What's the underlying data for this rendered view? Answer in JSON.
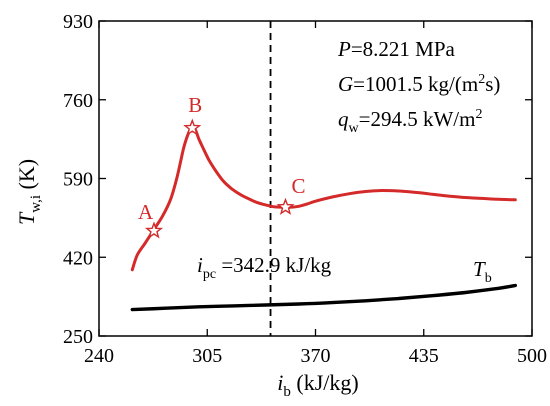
{
  "chart_data": {
    "type": "line",
    "xlim": [
      240,
      500
    ],
    "ylim": [
      250,
      930
    ],
    "xticks": [
      240,
      305,
      370,
      435,
      500
    ],
    "yticks": [
      250,
      420,
      590,
      760,
      930
    ],
    "xlabel": {
      "main": "i",
      "sub": "b",
      "unit": " (kJ/kg)"
    },
    "ylabel": {
      "main": "T",
      "sub": "w,i",
      "unit": " (K)"
    },
    "grid": false,
    "series": [
      {
        "name": "Tw,i",
        "color": "#d42a2a",
        "x": [
          260,
          263,
          268,
          273,
          278,
          283,
          287,
          291,
          294,
          296,
          298,
          300,
          303,
          306,
          310,
          315,
          320,
          325,
          330,
          335,
          340,
          345,
          350,
          355,
          360,
          365,
          370,
          380,
          390,
          400,
          410,
          420,
          430,
          440,
          450,
          460,
          470,
          480,
          490
        ],
        "y": [
          393,
          425,
          452,
          480,
          508,
          545,
          595,
          658,
          690,
          699,
          694,
          675,
          652,
          630,
          607,
          583,
          567,
          555,
          546,
          538,
          533,
          529,
          528,
          528,
          530,
          535,
          541,
          550,
          557,
          562,
          564,
          563,
          560,
          556,
          552,
          549,
          547,
          545,
          544
        ]
      },
      {
        "name": "Tb",
        "color": "#000000",
        "x": [
          260,
          280,
          300,
          320,
          340,
          360,
          380,
          400,
          420,
          440,
          460,
          480,
          490
        ],
        "y": [
          307,
          310,
          313,
          315,
          317,
          319,
          322,
          326,
          331,
          337,
          344,
          353,
          359
        ]
      }
    ],
    "points": [
      {
        "label": "A",
        "x": 273,
        "y": 477
      },
      {
        "label": "B",
        "x": 296,
        "y": 699
      },
      {
        "label": "C",
        "x": 352,
        "y": 528
      }
    ],
    "vline": {
      "x": 343,
      "style": "dashed"
    },
    "annotations": {
      "P": {
        "sym": "P",
        "text": "=8.221 MPa"
      },
      "G": {
        "sym": "G",
        "text": "=1001.5 kg/(m",
        "sup": "2",
        "tail": "s)"
      },
      "q": {
        "sym": "q",
        "sub": "w",
        "text": "=294.5 kW/m",
        "sup": "2"
      },
      "ipc": {
        "sym": "i",
        "sub": "pc",
        "text": " =342.9 kJ/kg"
      },
      "tb": {
        "sym": "T",
        "sub": "b"
      }
    }
  }
}
